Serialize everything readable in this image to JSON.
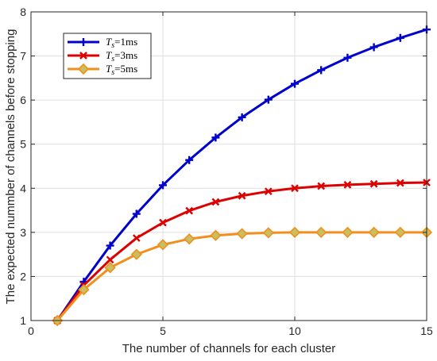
{
  "chart_data": {
    "type": "line",
    "xlabel": "The number of channels for each cluster",
    "ylabel": "The expected nummber of channels before stopping",
    "xlim": [
      0,
      15
    ],
    "ylim": [
      1,
      8
    ],
    "xticks": [
      0,
      5,
      10,
      15
    ],
    "yticks": [
      1,
      2,
      3,
      4,
      5,
      6,
      7,
      8
    ],
    "grid": true,
    "legend_position": "top-left",
    "x": [
      1,
      2,
      3,
      4,
      5,
      6,
      7,
      8,
      9,
      10,
      11,
      12,
      13,
      14,
      15
    ],
    "series": [
      {
        "name": "T_s=1ms",
        "legend_var": "T",
        "legend_sub": "s",
        "legend_rest": "=1ms",
        "color": "#0000cc",
        "marker": "plus",
        "values": [
          1.0,
          1.88,
          2.7,
          3.42,
          4.07,
          4.64,
          5.15,
          5.61,
          6.01,
          6.37,
          6.68,
          6.96,
          7.2,
          7.41,
          7.6
        ]
      },
      {
        "name": "T_s=3ms",
        "legend_var": "T",
        "legend_sub": "s",
        "legend_rest": "=3ms",
        "color": "#dd0000",
        "marker": "x",
        "values": [
          1.0,
          1.8,
          2.38,
          2.87,
          3.22,
          3.49,
          3.69,
          3.83,
          3.93,
          4.0,
          4.05,
          4.08,
          4.1,
          4.12,
          4.13
        ]
      },
      {
        "name": "T_s=5ms",
        "legend_var": "T",
        "legend_sub": "s",
        "legend_rest": "=5ms",
        "color": "#f28e1c",
        "marker": "diamond",
        "values": [
          1.0,
          1.7,
          2.2,
          2.5,
          2.72,
          2.85,
          2.93,
          2.97,
          2.99,
          3.0,
          3.0,
          3.0,
          3.0,
          3.0,
          3.0
        ]
      }
    ]
  }
}
